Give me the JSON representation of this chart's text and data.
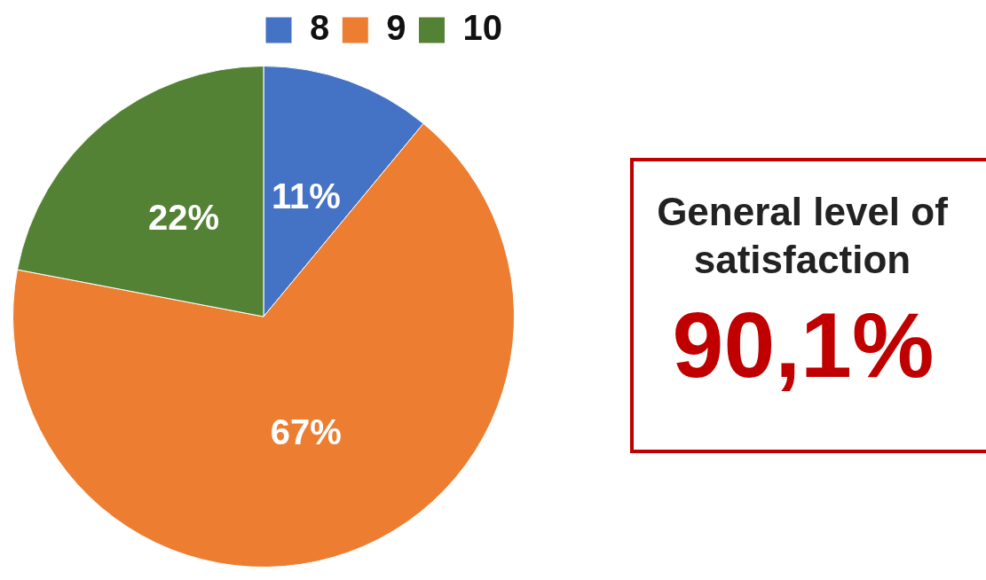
{
  "chart_data": {
    "type": "pie",
    "categories": [
      "8",
      "9",
      "10"
    ],
    "values": [
      11,
      67,
      22
    ],
    "colors": [
      "#4472c4",
      "#ed7d31",
      "#548235"
    ],
    "value_labels": [
      "11%",
      "67%",
      "22%"
    ],
    "legend": "top",
    "annotations": [
      "General level of satisfaction",
      "90,1%"
    ]
  }
}
